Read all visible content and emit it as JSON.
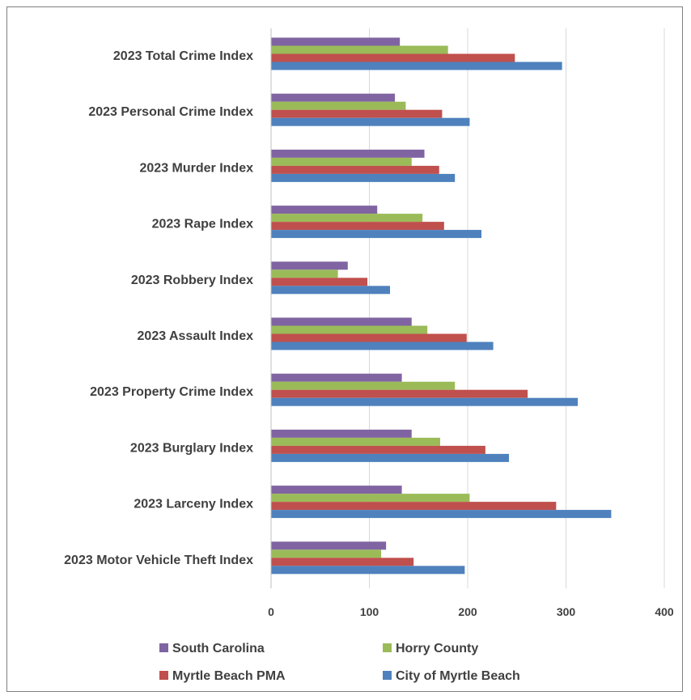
{
  "chart_data": {
    "type": "bar",
    "orientation": "horizontal",
    "categories": [
      "2023 Total Crime Index",
      "2023 Personal Crime Index",
      "2023 Murder Index",
      "2023 Rape Index",
      "2023 Robbery Index",
      "2023 Assault Index",
      "2023 Property Crime Index",
      "2023 Burglary Index",
      "2023 Larceny Index",
      "2023 Motor Vehicle Theft Index"
    ],
    "series": [
      {
        "name": "South Carolina",
        "color": "#8064a2",
        "values": [
          131,
          126,
          156,
          108,
          78,
          143,
          133,
          143,
          133,
          117
        ]
      },
      {
        "name": "Horry County",
        "color": "#9bbb59",
        "values": [
          180,
          137,
          143,
          154,
          68,
          159,
          187,
          172,
          202,
          112
        ]
      },
      {
        "name": "Myrtle Beach PMA",
        "color": "#c0504d",
        "values": [
          248,
          174,
          171,
          176,
          98,
          199,
          261,
          218,
          290,
          145
        ]
      },
      {
        "name": "City of Myrtle Beach",
        "color": "#4f81bd",
        "values": [
          296,
          202,
          187,
          214,
          121,
          226,
          312,
          242,
          346,
          197
        ]
      }
    ],
    "xlim": [
      0,
      400
    ],
    "xticks": [
      "0",
      "100",
      "200",
      "300",
      "400"
    ],
    "grid": true,
    "legend": {
      "placement": "bottom",
      "order": [
        "South Carolina",
        "Horry County",
        "Myrtle Beach PMA",
        "City of Myrtle Beach"
      ]
    },
    "title": "",
    "xlabel": "",
    "ylabel": ""
  }
}
